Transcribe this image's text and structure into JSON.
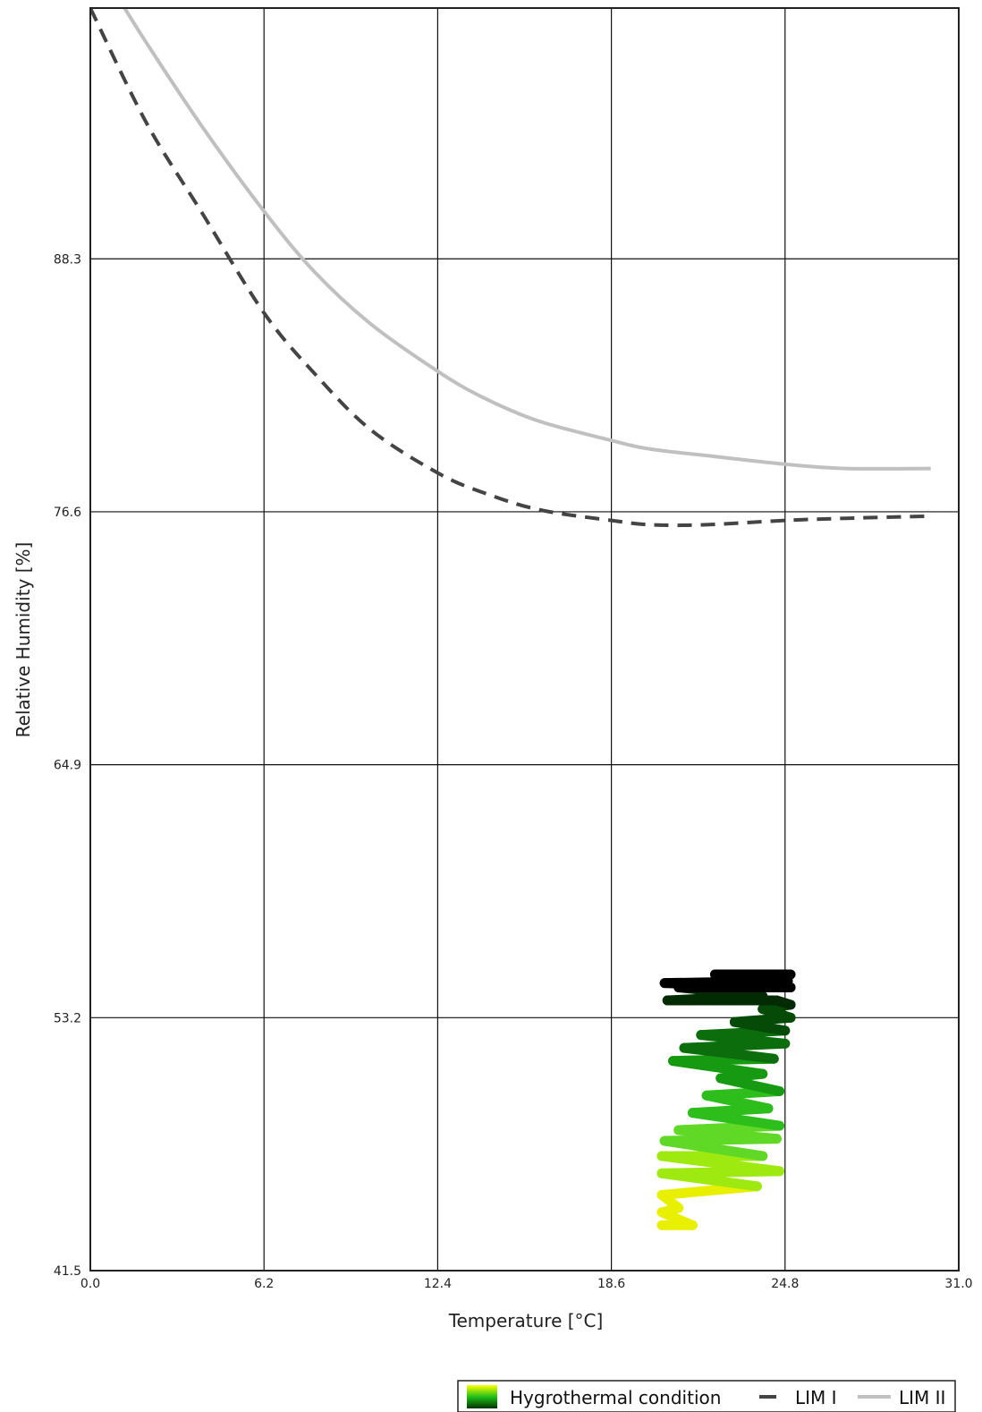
{
  "chart_data": {
    "type": "line",
    "title": "",
    "xlabel": "Temperature [°C]",
    "ylabel": "Relative Humidity [%]",
    "xlim": [
      0.0,
      31.0
    ],
    "ylim": [
      41.5,
      99.9
    ],
    "x_ticks": [
      "0.0",
      "6.2",
      "12.4",
      "18.6",
      "24.8",
      "31.0"
    ],
    "y_ticks": [
      "41.5",
      "53.2",
      "64.9",
      "76.6",
      "88.3"
    ],
    "grid": true,
    "legend_position": "bottom-right",
    "series": [
      {
        "name": "LIM I",
        "style": "dashed",
        "color": "#444444",
        "x": [
          0.0,
          2.0,
          4.0,
          6.2,
          8.0,
          10.0,
          12.4,
          14.0,
          16.0,
          18.6,
          20.0,
          22.0,
          24.8,
          27.0,
          30.0
        ],
        "y": [
          99.9,
          94.6,
          90.4,
          85.8,
          83.0,
          80.4,
          78.4,
          77.5,
          76.7,
          76.2,
          76.0,
          76.0,
          76.2,
          76.3,
          76.4
        ]
      },
      {
        "name": "LIM II",
        "style": "solid",
        "color": "#c0c0c0",
        "x": [
          0.7,
          2.0,
          4.0,
          6.2,
          8.0,
          10.0,
          12.4,
          14.0,
          16.0,
          18.6,
          20.0,
          22.0,
          24.8,
          27.0,
          30.0
        ],
        "y": [
          101.0,
          98.3,
          94.4,
          90.5,
          87.7,
          85.3,
          83.1,
          81.9,
          80.8,
          79.9,
          79.5,
          79.2,
          78.8,
          78.6,
          78.6
        ]
      },
      {
        "name": "Hygrothermal condition",
        "style": "scatter-path",
        "x": [
          20.4,
          21.5,
          20.4,
          21.0,
          20.4,
          23.8,
          20.4,
          24.6,
          20.4,
          24.0,
          20.5,
          24.5,
          21.0,
          24.6,
          21.5,
          24.2,
          22.0,
          24.6,
          22.5,
          24.0,
          20.8,
          24.4,
          21.2,
          24.8,
          21.8,
          24.8,
          23.0,
          25.0,
          24.0,
          25.0,
          24.5,
          20.6,
          24.0,
          21.0,
          25.0,
          20.5,
          24.9,
          22.3,
          25.0
        ],
        "y": [
          43.6,
          43.6,
          44.2,
          44.4,
          45.0,
          45.4,
          46.0,
          46.1,
          46.8,
          46.8,
          47.5,
          47.6,
          48.0,
          48.2,
          48.8,
          49.0,
          49.6,
          49.8,
          50.4,
          50.6,
          51.2,
          51.3,
          51.8,
          52.0,
          52.4,
          52.6,
          53.0,
          53.2,
          53.6,
          53.8,
          54.0,
          54.0,
          54.2,
          54.6,
          54.6,
          54.8,
          54.9,
          55.2,
          55.2
        ]
      }
    ]
  },
  "legend": {
    "items": [
      {
        "label": "Hygrothermal condition"
      },
      {
        "label": "LIM I"
      },
      {
        "label": "LIM II"
      }
    ]
  }
}
